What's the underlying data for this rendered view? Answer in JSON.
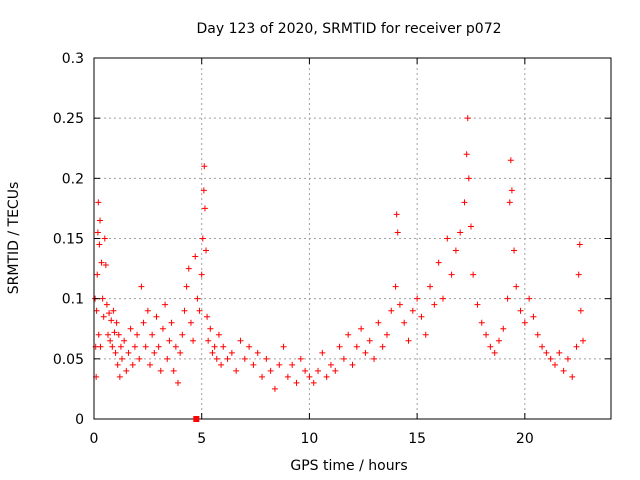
{
  "chart_data": {
    "type": "scatter",
    "title": "Day 123 of 2020, SRMTID for receiver p072",
    "xlabel": "GPS time / hours",
    "ylabel": "SRMTID / TECUs",
    "xlim": [
      0,
      24
    ],
    "ylim": [
      0,
      0.3
    ],
    "x_ticks": [
      0,
      5,
      10,
      15,
      20
    ],
    "x_tick_labels": [
      "0",
      "5",
      "10",
      "15",
      "20"
    ],
    "y_ticks": [
      0,
      0.05,
      0.1,
      0.15,
      0.2,
      0.25,
      0.3
    ],
    "y_tick_labels": [
      "0",
      "0.05",
      "0.1",
      "0.15",
      "0.2",
      "0.25",
      "0.3"
    ],
    "grid": true,
    "marker": "+",
    "color": "#ff0000",
    "marker_box": {
      "x": 4.75,
      "y": 0.0
    },
    "points": [
      [
        0.05,
        0.1
      ],
      [
        0.08,
        0.06
      ],
      [
        0.1,
        0.035
      ],
      [
        0.12,
        0.09
      ],
      [
        0.15,
        0.12
      ],
      [
        0.18,
        0.155
      ],
      [
        0.2,
        0.18
      ],
      [
        0.22,
        0.07
      ],
      [
        0.25,
        0.145
      ],
      [
        0.28,
        0.165
      ],
      [
        0.3,
        0.06
      ],
      [
        0.35,
        0.13
      ],
      [
        0.4,
        0.1
      ],
      [
        0.45,
        0.085
      ],
      [
        0.5,
        0.15
      ],
      [
        0.55,
        0.128
      ],
      [
        0.6,
        0.095
      ],
      [
        0.65,
        0.07
      ],
      [
        0.7,
        0.088
      ],
      [
        0.75,
        0.065
      ],
      [
        0.8,
        0.082
      ],
      [
        0.85,
        0.06
      ],
      [
        0.9,
        0.09
      ],
      [
        0.95,
        0.072
      ],
      [
        1.0,
        0.055
      ],
      [
        1.05,
        0.08
      ],
      [
        1.1,
        0.045
      ],
      [
        1.15,
        0.07
      ],
      [
        1.2,
        0.035
      ],
      [
        1.25,
        0.06
      ],
      [
        1.3,
        0.05
      ],
      [
        1.4,
        0.065
      ],
      [
        1.5,
        0.04
      ],
      [
        1.6,
        0.055
      ],
      [
        1.7,
        0.075
      ],
      [
        1.8,
        0.045
      ],
      [
        1.9,
        0.06
      ],
      [
        2.0,
        0.07
      ],
      [
        2.1,
        0.05
      ],
      [
        2.2,
        0.11
      ],
      [
        2.3,
        0.08
      ],
      [
        2.4,
        0.06
      ],
      [
        2.5,
        0.09
      ],
      [
        2.6,
        0.045
      ],
      [
        2.7,
        0.07
      ],
      [
        2.8,
        0.055
      ],
      [
        2.9,
        0.085
      ],
      [
        3.0,
        0.06
      ],
      [
        3.1,
        0.04
      ],
      [
        3.2,
        0.075
      ],
      [
        3.3,
        0.095
      ],
      [
        3.4,
        0.05
      ],
      [
        3.5,
        0.065
      ],
      [
        3.6,
        0.08
      ],
      [
        3.7,
        0.04
      ],
      [
        3.8,
        0.06
      ],
      [
        3.9,
        0.03
      ],
      [
        4.0,
        0.055
      ],
      [
        4.1,
        0.07
      ],
      [
        4.2,
        0.09
      ],
      [
        4.3,
        0.11
      ],
      [
        4.4,
        0.125
      ],
      [
        4.5,
        0.08
      ],
      [
        4.6,
        0.065
      ],
      [
        4.7,
        0.135
      ],
      [
        4.8,
        0.1
      ],
      [
        4.9,
        0.09
      ],
      [
        5.0,
        0.12
      ],
      [
        5.05,
        0.15
      ],
      [
        5.1,
        0.19
      ],
      [
        5.12,
        0.21
      ],
      [
        5.15,
        0.175
      ],
      [
        5.2,
        0.14
      ],
      [
        5.25,
        0.085
      ],
      [
        5.3,
        0.065
      ],
      [
        5.4,
        0.075
      ],
      [
        5.5,
        0.055
      ],
      [
        5.6,
        0.06
      ],
      [
        5.7,
        0.05
      ],
      [
        5.8,
        0.07
      ],
      [
        5.9,
        0.045
      ],
      [
        6.0,
        0.06
      ],
      [
        6.2,
        0.05
      ],
      [
        6.4,
        0.055
      ],
      [
        6.6,
        0.04
      ],
      [
        6.8,
        0.065
      ],
      [
        7.0,
        0.05
      ],
      [
        7.2,
        0.06
      ],
      [
        7.4,
        0.045
      ],
      [
        7.6,
        0.055
      ],
      [
        7.8,
        0.035
      ],
      [
        8.0,
        0.05
      ],
      [
        8.2,
        0.04
      ],
      [
        8.4,
        0.025
      ],
      [
        8.6,
        0.045
      ],
      [
        8.8,
        0.06
      ],
      [
        9.0,
        0.035
      ],
      [
        9.2,
        0.045
      ],
      [
        9.4,
        0.03
      ],
      [
        9.6,
        0.05
      ],
      [
        9.8,
        0.04
      ],
      [
        10.0,
        0.035
      ],
      [
        10.2,
        0.03
      ],
      [
        10.4,
        0.04
      ],
      [
        10.6,
        0.055
      ],
      [
        10.8,
        0.035
      ],
      [
        11.0,
        0.045
      ],
      [
        11.2,
        0.04
      ],
      [
        11.4,
        0.06
      ],
      [
        11.6,
        0.05
      ],
      [
        11.8,
        0.07
      ],
      [
        12.0,
        0.045
      ],
      [
        12.2,
        0.06
      ],
      [
        12.4,
        0.075
      ],
      [
        12.6,
        0.055
      ],
      [
        12.8,
        0.065
      ],
      [
        13.0,
        0.05
      ],
      [
        13.2,
        0.08
      ],
      [
        13.4,
        0.06
      ],
      [
        13.6,
        0.07
      ],
      [
        13.8,
        0.09
      ],
      [
        14.0,
        0.11
      ],
      [
        14.05,
        0.17
      ],
      [
        14.1,
        0.155
      ],
      [
        14.2,
        0.095
      ],
      [
        14.4,
        0.08
      ],
      [
        14.6,
        0.065
      ],
      [
        14.8,
        0.09
      ],
      [
        15.0,
        0.1
      ],
      [
        15.2,
        0.085
      ],
      [
        15.4,
        0.07
      ],
      [
        15.6,
        0.11
      ],
      [
        15.8,
        0.095
      ],
      [
        16.0,
        0.13
      ],
      [
        16.2,
        0.1
      ],
      [
        16.4,
        0.15
      ],
      [
        16.6,
        0.12
      ],
      [
        16.8,
        0.14
      ],
      [
        17.0,
        0.155
      ],
      [
        17.2,
        0.18
      ],
      [
        17.3,
        0.22
      ],
      [
        17.35,
        0.25
      ],
      [
        17.4,
        0.2
      ],
      [
        17.5,
        0.16
      ],
      [
        17.6,
        0.12
      ],
      [
        17.8,
        0.095
      ],
      [
        18.0,
        0.08
      ],
      [
        18.2,
        0.07
      ],
      [
        18.4,
        0.06
      ],
      [
        18.6,
        0.055
      ],
      [
        18.8,
        0.065
      ],
      [
        19.0,
        0.075
      ],
      [
        19.2,
        0.1
      ],
      [
        19.3,
        0.18
      ],
      [
        19.35,
        0.215
      ],
      [
        19.4,
        0.19
      ],
      [
        19.5,
        0.14
      ],
      [
        19.6,
        0.11
      ],
      [
        19.8,
        0.09
      ],
      [
        20.0,
        0.08
      ],
      [
        20.2,
        0.1
      ],
      [
        20.4,
        0.085
      ],
      [
        20.6,
        0.07
      ],
      [
        20.8,
        0.06
      ],
      [
        21.0,
        0.055
      ],
      [
        21.2,
        0.05
      ],
      [
        21.4,
        0.045
      ],
      [
        21.6,
        0.055
      ],
      [
        21.8,
        0.04
      ],
      [
        22.0,
        0.05
      ],
      [
        22.2,
        0.035
      ],
      [
        22.4,
        0.06
      ],
      [
        22.5,
        0.12
      ],
      [
        22.55,
        0.145
      ],
      [
        22.6,
        0.09
      ],
      [
        22.7,
        0.065
      ]
    ]
  }
}
